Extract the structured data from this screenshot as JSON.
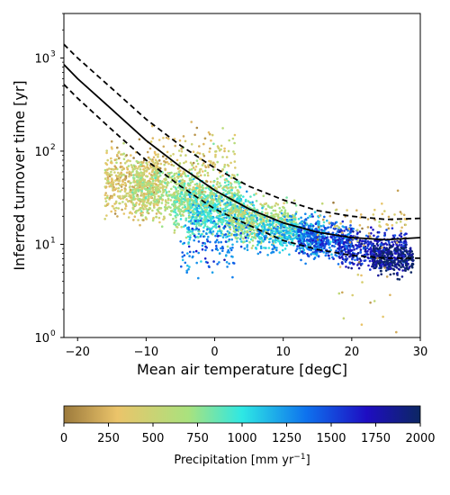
{
  "chart_data": {
    "type": "scatter",
    "title": "",
    "xlabel": "Mean air temperature [degC]",
    "ylabel": "Inferred turnover time [yr]",
    "xlim": [
      -22,
      30
    ],
    "ylim": [
      1,
      3000
    ],
    "yscale": "log",
    "grid": false,
    "xticks": [
      -20,
      -10,
      0,
      10,
      20,
      30
    ],
    "xtick_labels": [
      "−20",
      "−10",
      "0",
      "10",
      "20",
      "30"
    ],
    "yticks": [
      1,
      10,
      100,
      1000
    ],
    "ytick_labels": [
      "10",
      "10",
      "10",
      "10"
    ],
    "ytick_exponents": [
      "0",
      "1",
      "2",
      "3"
    ],
    "colorbar": {
      "label_prefix": "Precipitation [mm yr",
      "label_exponent": "−1",
      "label_suffix": "]",
      "range": [
        0,
        2000
      ],
      "ticks": [
        0,
        250,
        500,
        750,
        1000,
        1250,
        1500,
        1750,
        2000
      ],
      "tick_labels": [
        "0",
        "250",
        "500",
        "750",
        "1000",
        "1250",
        "1500",
        "1750",
        "2000"
      ],
      "colors": [
        "#9c7a3c",
        "#ebc46a",
        "#a9e27e",
        "#2ee8e4",
        "#0e72ee",
        "#1e0dc2",
        "#0c2762"
      ],
      "stops": [
        0,
        0.15,
        0.35,
        0.5,
        0.68,
        0.85,
        1
      ]
    },
    "fit_lines": [
      {
        "style": "solid",
        "points": [
          [
            -22,
            850
          ],
          [
            -20,
            600
          ],
          [
            -15,
            280
          ],
          [
            -10,
            130
          ],
          [
            -5,
            68
          ],
          [
            0,
            38
          ],
          [
            5,
            24
          ],
          [
            10,
            17
          ],
          [
            15,
            13.5
          ],
          [
            20,
            11.8
          ],
          [
            25,
            11.2
          ],
          [
            30,
            11.8
          ]
        ]
      },
      {
        "style": "dashed",
        "points": [
          [
            -22,
            1400
          ],
          [
            -20,
            1000
          ],
          [
            -15,
            470
          ],
          [
            -10,
            220
          ],
          [
            -5,
            115
          ],
          [
            0,
            66
          ],
          [
            5,
            42
          ],
          [
            10,
            30
          ],
          [
            15,
            23
          ],
          [
            20,
            20
          ],
          [
            25,
            18.5
          ],
          [
            30,
            19
          ]
        ]
      },
      {
        "style": "dashed",
        "points": [
          [
            -22,
            520
          ],
          [
            -20,
            370
          ],
          [
            -15,
            170
          ],
          [
            -10,
            80
          ],
          [
            -5,
            42
          ],
          [
            0,
            24
          ],
          [
            5,
            16
          ],
          [
            10,
            11
          ],
          [
            15,
            8.8
          ],
          [
            20,
            7.6
          ],
          [
            25,
            7.1
          ],
          [
            30,
            7.1
          ]
        ]
      }
    ],
    "scatter_clusters": [
      {
        "x_range": [
          -16,
          -8
        ],
        "y_center": 45,
        "y_spread": 0.35,
        "precip": 350,
        "count": 520
      },
      {
        "x_range": [
          -12,
          -2
        ],
        "y_center": 38,
        "y_spread": 0.3,
        "precip": 600,
        "count": 520
      },
      {
        "x_range": [
          -6,
          4
        ],
        "y_center": 28,
        "y_spread": 0.28,
        "precip": 800,
        "count": 520
      },
      {
        "x_range": [
          -4,
          6
        ],
        "y_center": 20,
        "y_spread": 0.25,
        "precip": 1050,
        "count": 420
      },
      {
        "x_range": [
          2,
          12
        ],
        "y_center": 17,
        "y_spread": 0.22,
        "precip": 650,
        "count": 440
      },
      {
        "x_range": [
          6,
          16
        ],
        "y_center": 13,
        "y_spread": 0.2,
        "precip": 1150,
        "count": 440
      },
      {
        "x_range": [
          12,
          20
        ],
        "y_center": 11,
        "y_spread": 0.18,
        "precip": 1450,
        "count": 420
      },
      {
        "x_range": [
          18,
          28
        ],
        "y_center": 9,
        "y_spread": 0.2,
        "precip": 1650,
        "count": 440
      },
      {
        "x_range": [
          23,
          29
        ],
        "y_center": 7,
        "y_spread": 0.16,
        "precip": 1950,
        "count": 300
      },
      {
        "x_range": [
          -2,
          3
        ],
        "y_center": 60,
        "y_spread": 0.45,
        "precip": 500,
        "count": 90
      },
      {
        "x_range": [
          -10,
          0
        ],
        "y_center": 90,
        "y_spread": 0.35,
        "precip": 300,
        "count": 90
      },
      {
        "x_range": [
          -5,
          5
        ],
        "y_center": 10,
        "y_spread": 0.3,
        "precip": 1350,
        "count": 140
      },
      {
        "x_range": [
          15,
          28
        ],
        "y_center": 16,
        "y_spread": 0.25,
        "precip": 300,
        "count": 70
      },
      {
        "x_range": [
          18,
          27
        ],
        "y_center": 3.5,
        "y_spread": 0.45,
        "precip": 300,
        "count": 18
      }
    ]
  }
}
